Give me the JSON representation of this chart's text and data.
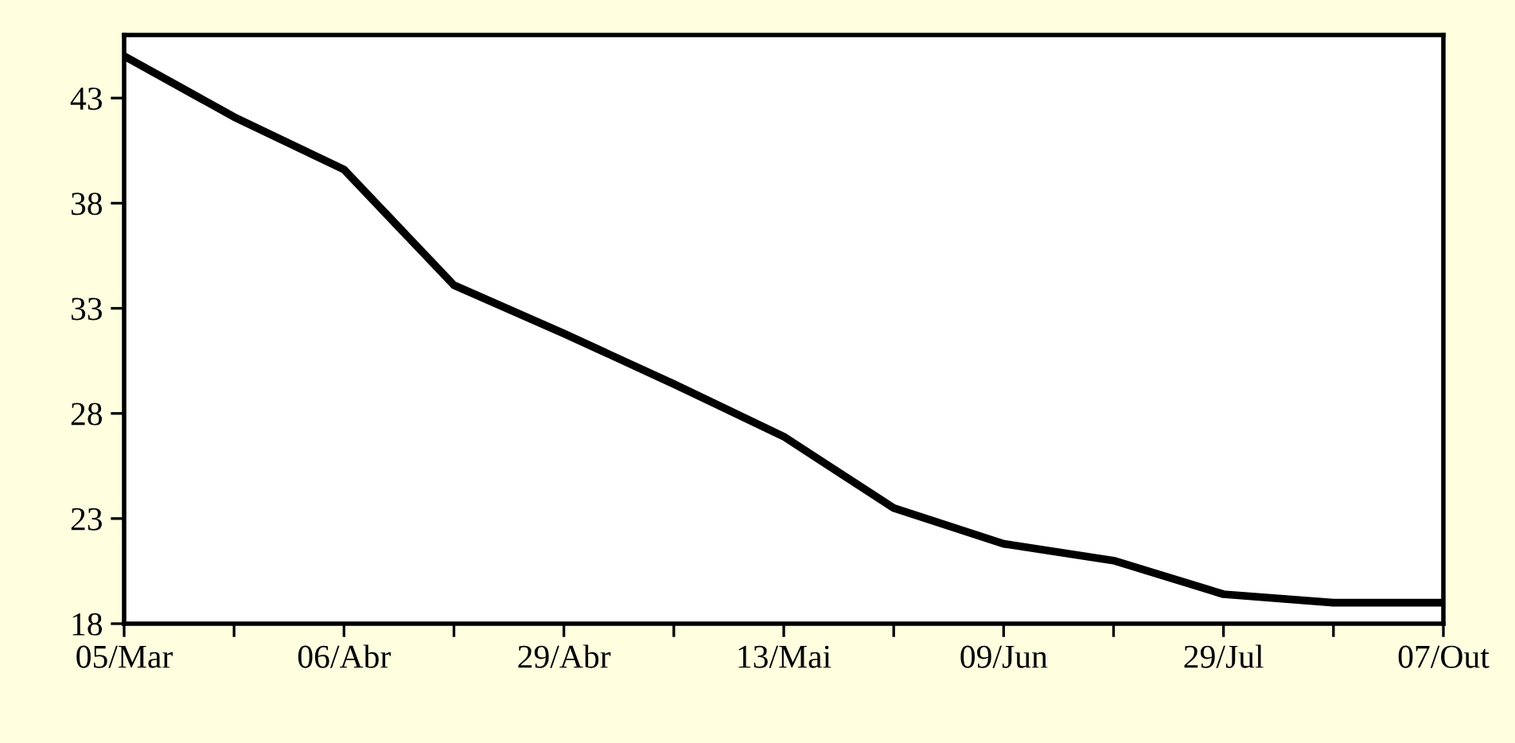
{
  "chart_data": {
    "type": "line",
    "categories": [
      "05/Mar",
      null,
      "06/Abr",
      null,
      "29/Abr",
      null,
      "13/Mai",
      null,
      "09/Jun",
      null,
      "29/Jul",
      null,
      "07/Out"
    ],
    "series": [
      {
        "color": "#000000",
        "values": [
          45.0,
          42.1,
          39.6,
          34.1,
          31.8,
          29.4,
          26.9,
          23.5,
          21.8,
          21.0,
          19.4,
          19.0,
          19.0
        ]
      }
    ],
    "ylim": [
      18,
      46
    ],
    "yticks": [
      18,
      23,
      28,
      33,
      38,
      43
    ],
    "grid": false,
    "legend": false,
    "marker": "none",
    "line_style": "solid"
  }
}
